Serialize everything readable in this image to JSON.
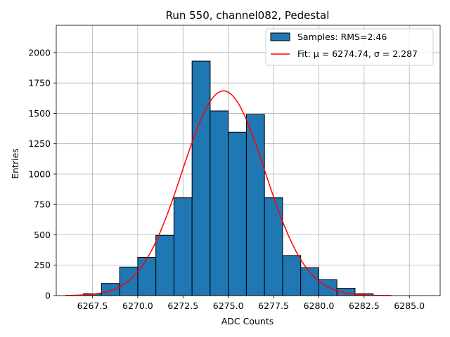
{
  "chart_data": {
    "type": "bar",
    "title": "Run 550, channel082, Pedestal",
    "xlabel": "ADC Counts",
    "ylabel": "Entries",
    "xlim": [
      6265.5,
      6286.7
    ],
    "ylim": [
      0,
      2225
    ],
    "xticks": [
      6267.5,
      6270.0,
      6272.5,
      6275.0,
      6277.5,
      6280.0,
      6282.5,
      6285.0
    ],
    "xtick_labels": [
      "6267.5",
      "6270.0",
      "6272.5",
      "6275.0",
      "6277.5",
      "6280.0",
      "6282.5",
      "6285.0"
    ],
    "yticks": [
      0,
      250,
      500,
      750,
      1000,
      1250,
      1500,
      1750,
      2000
    ],
    "ytick_labels": [
      "0",
      "250",
      "500",
      "750",
      "1000",
      "1250",
      "1500",
      "1750",
      "2000"
    ],
    "grid": true,
    "legend_position": "upper right",
    "bin_width": 1.0,
    "bins": [
      {
        "left": 6267.0,
        "count": 15
      },
      {
        "left": 6268.0,
        "count": 100
      },
      {
        "left": 6269.0,
        "count": 235
      },
      {
        "left": 6270.0,
        "count": 315
      },
      {
        "left": 6271.0,
        "count": 495
      },
      {
        "left": 6272.0,
        "count": 805
      },
      {
        "left": 6273.0,
        "count": 1930
      },
      {
        "left": 6274.0,
        "count": 1520
      },
      {
        "left": 6275.0,
        "count": 1345
      },
      {
        "left": 6276.0,
        "count": 1490
      },
      {
        "left": 6277.0,
        "count": 805
      },
      {
        "left": 6278.0,
        "count": 330
      },
      {
        "left": 6279.0,
        "count": 230
      },
      {
        "left": 6280.0,
        "count": 130
      },
      {
        "left": 6281.0,
        "count": 60
      },
      {
        "left": 6282.0,
        "count": 15
      }
    ],
    "series": [
      {
        "name": "Samples: RMS=2.46",
        "kind": "histogram",
        "color": "#1f77b4",
        "edgecolor": "#000000"
      },
      {
        "name": "Fit: μ = 6274.74, σ = 2.287",
        "kind": "gaussian-fit",
        "color": "#ff0000",
        "mu": 6274.74,
        "sigma": 2.287,
        "amplitude": 1685,
        "x_range": [
          6266.0,
          6284.0
        ]
      }
    ]
  }
}
